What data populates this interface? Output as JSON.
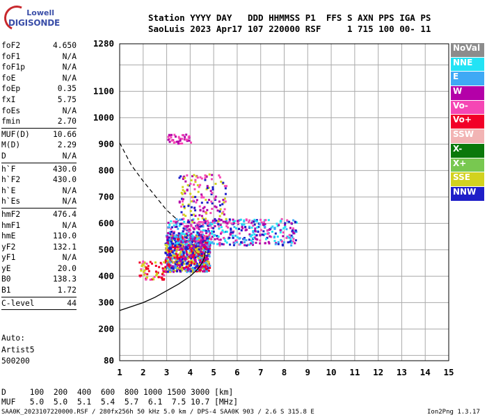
{
  "logo": {
    "brand": "Lowell",
    "name": "DIGISONDE"
  },
  "header": {
    "line1": "Station YYYY DAY   DDD HHMMSS P1  FFS S AXN PPS IGA PS",
    "line2": "SaoLuis 2023 Apr17 107 220000 RSF     1 715 100 00- 11"
  },
  "params_groups": [
    [
      {
        "k": "foF2",
        "v": "4.650"
      },
      {
        "k": "foF1",
        "v": "N/A"
      },
      {
        "k": "foF1p",
        "v": "N/A"
      },
      {
        "k": "foE",
        "v": "N/A"
      },
      {
        "k": "foEp",
        "v": "0.35"
      },
      {
        "k": "fxI",
        "v": "5.75"
      },
      {
        "k": "foEs",
        "v": "N/A"
      },
      {
        "k": "fmin",
        "v": "2.70"
      }
    ],
    [
      {
        "k": "MUF(D)",
        "v": "10.66"
      },
      {
        "k": "M(D)",
        "v": "2.29"
      },
      {
        "k": "D",
        "v": "N/A"
      }
    ],
    [
      {
        "k": "h`F",
        "v": "430.0"
      },
      {
        "k": "h`F2",
        "v": "430.0"
      },
      {
        "k": "h`E",
        "v": "N/A"
      },
      {
        "k": "h`Es",
        "v": "N/A"
      }
    ],
    [
      {
        "k": "hmF2",
        "v": "476.4"
      },
      {
        "k": "hmF1",
        "v": "N/A"
      },
      {
        "k": "hmE",
        "v": "110.0"
      },
      {
        "k": "yF2",
        "v": "132.1"
      },
      {
        "k": "yF1",
        "v": "N/A"
      },
      {
        "k": "yE",
        "v": "20.0"
      },
      {
        "k": "B0",
        "v": "138.3"
      },
      {
        "k": "B1",
        "v": "1.72"
      }
    ],
    [
      {
        "k": "C-level",
        "v": "44"
      }
    ]
  ],
  "autoscale": {
    "line1": "Auto:",
    "line2": "Artist5",
    "line3": "500200"
  },
  "legend": [
    {
      "label": "NoVal",
      "color": "#8c8c8c"
    },
    {
      "label": "NNE",
      "color": "#22e3f5"
    },
    {
      "label": "E",
      "color": "#3fa9f5"
    },
    {
      "label": "W",
      "color": "#b400a8"
    },
    {
      "label": "Vo-",
      "color": "#f546b4"
    },
    {
      "label": "Vo+",
      "color": "#f20028"
    },
    {
      "label": "SSW",
      "color": "#f2b4b4"
    },
    {
      "label": "X-",
      "color": "#0a780a"
    },
    {
      "label": "X+",
      "color": "#78c850"
    },
    {
      "label": "SSE",
      "color": "#d2d21e"
    },
    {
      "label": "NNW",
      "color": "#1e1ec8"
    }
  ],
  "muf_table": {
    "d_line": "D     100  200  400  600  800 1000 1500 3000 [km]",
    "muf_line": "MUF   5.0  5.0  5.1  5.4  5.7  6.1  7.5 10.7 [MHz]"
  },
  "footer": {
    "left": "SAA0K_2023107220000.RSF / 280fx256h 50 kHz 5.0 km / DPS-4 SAA0K 903 / 2.6 S 315.8 E",
    "right": "Ion2Png 1.3.17"
  },
  "chart_data": {
    "type": "scatter",
    "xlim": [
      1,
      15
    ],
    "ylim": [
      80,
      1280
    ],
    "x_ticks": [
      1,
      2,
      3,
      4,
      5,
      6,
      7,
      8,
      9,
      10,
      11,
      12,
      13,
      14,
      15
    ],
    "y_ticks": [
      80,
      200,
      300,
      400,
      500,
      600,
      700,
      800,
      900,
      1000,
      1100,
      1280
    ],
    "grid": true,
    "clusters": [
      {
        "label": "F2 trace main",
        "x_range": [
          2.9,
          4.8
        ],
        "y_range": [
          420,
          560
        ],
        "color_mix": [
          "#b400a8",
          "#1e1ec8",
          "#f20028",
          "#3fa9f5",
          "#d2d21e"
        ]
      },
      {
        "label": "F2 spread",
        "x_range": [
          3.0,
          8.5
        ],
        "y_range": [
          520,
          620
        ],
        "color_mix": [
          "#b400a8",
          "#1e1ec8",
          "#3fa9f5",
          "#22e3f5",
          "#f546b4"
        ]
      },
      {
        "label": "F2 upper spread",
        "x_range": [
          3.5,
          5.5
        ],
        "y_range": [
          600,
          790
        ],
        "color_mix": [
          "#d2d21e",
          "#b400a8",
          "#1e1ec8",
          "#f546b4"
        ]
      },
      {
        "label": "high echo",
        "x_range": [
          3.0,
          4.0
        ],
        "y_range": [
          905,
          940
        ],
        "color_mix": [
          "#b400a8",
          "#f546b4"
        ]
      },
      {
        "label": "low echo",
        "x_range": [
          1.8,
          2.9
        ],
        "y_range": [
          390,
          460
        ],
        "color_mix": [
          "#f20028",
          "#f546b4",
          "#d2d21e"
        ]
      }
    ],
    "virtual_height_curve": {
      "style": "dashed",
      "x": [
        1.0,
        1.5,
        2.0,
        2.5,
        3.0,
        3.5
      ],
      "y": [
        905,
        820,
        760,
        705,
        650,
        610
      ]
    },
    "profile_curve": {
      "style": "solid",
      "x": [
        1.0,
        1.5,
        2.0,
        2.5,
        3.0,
        3.5,
        4.0,
        4.3,
        4.5,
        4.6,
        4.65
      ],
      "y": [
        270,
        285,
        300,
        320,
        345,
        370,
        400,
        425,
        450,
        470,
        495
      ]
    }
  }
}
